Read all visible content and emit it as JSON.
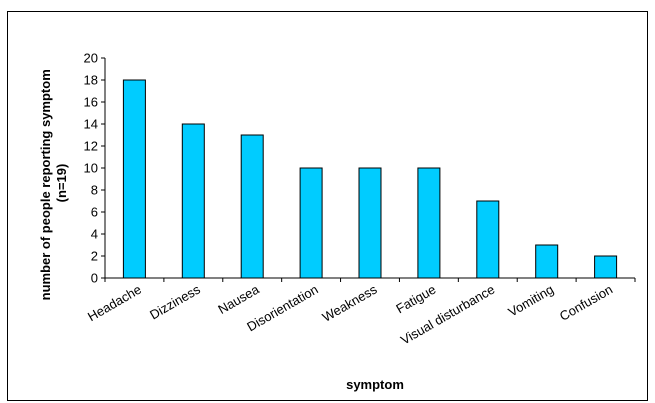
{
  "chart_data": {
    "type": "bar",
    "categories": [
      "Headache",
      "Dizziness",
      "Nausea",
      "Disorientation",
      "Weakness",
      "Fatigue",
      "Visual disturbance",
      "Vomiting",
      "Confusion"
    ],
    "values": [
      18,
      14,
      13,
      10,
      10,
      10,
      7,
      3,
      2
    ],
    "xlabel": "symptom",
    "ylabel_line1": "number of people reporting symptom",
    "ylabel_line2": "(n=19)",
    "ylim": [
      0,
      20
    ],
    "yticks": [
      0,
      2,
      4,
      6,
      8,
      10,
      12,
      14,
      16,
      18,
      20
    ],
    "grid": false,
    "legend": "none",
    "bar_color": "#00ccff",
    "bar_edge_color": "#000000"
  }
}
